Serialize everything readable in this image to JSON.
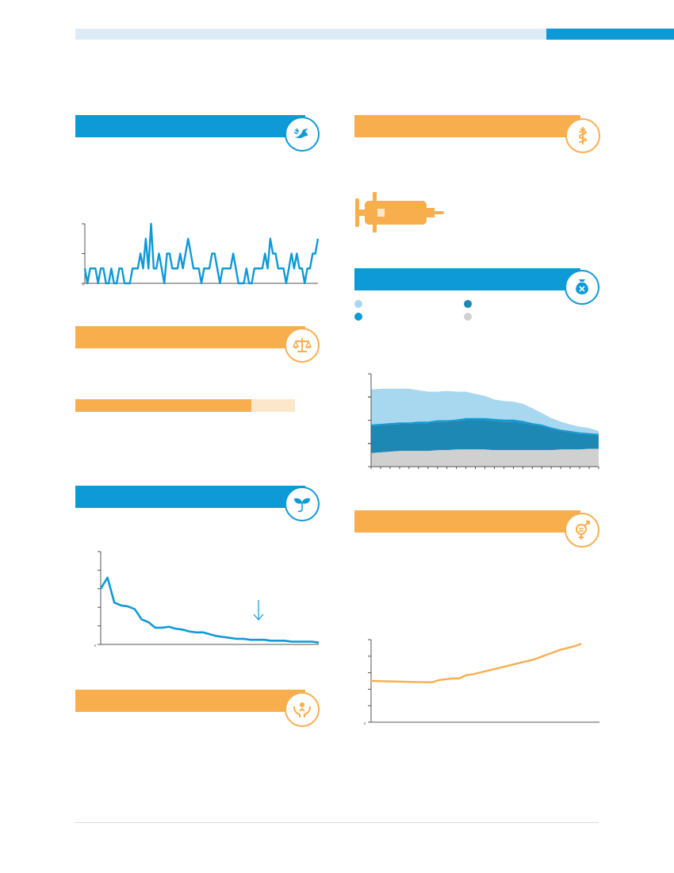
{
  "page": {
    "colors": {
      "blue": "#0e9ad6",
      "orange": "#f9ae4e",
      "dark_blue": "#1e88b4",
      "light_blue": "#a8d8ef",
      "grey": "#d0d0d0",
      "band_light": "#ddebf7"
    }
  },
  "panels": {
    "peace": {
      "icon": "dove-icon"
    },
    "justice": {
      "icon": "scales-icon"
    },
    "environment": {
      "icon": "sprout-icon"
    },
    "care": {
      "icon": "hands-heart-icon"
    },
    "health": {
      "icon": "snake-staff-icon"
    },
    "poverty": {
      "icon": "money-bag-icon"
    },
    "gender": {
      "icon": "gender-equality-icon"
    }
  },
  "syringe": {
    "icon": "syringe-icon"
  },
  "progress": {
    "value": 0.8
  },
  "chart_data": [
    {
      "id": "peace-line",
      "type": "line",
      "series": [
        {
          "values": [
            1,
            0,
            1,
            1,
            1,
            0,
            1,
            1,
            0,
            0,
            1,
            0,
            0,
            1,
            1,
            0,
            0,
            0,
            1,
            1,
            1,
            2,
            1,
            3,
            1,
            4,
            1,
            1,
            2,
            1,
            0,
            2,
            2,
            1,
            1,
            1,
            2,
            1,
            2,
            3,
            2,
            1,
            1,
            1,
            0,
            1,
            1,
            1,
            2,
            2,
            1,
            0,
            1,
            1,
            1,
            1,
            2,
            1,
            0,
            0,
            0,
            1,
            0,
            0,
            1,
            1,
            1,
            1,
            2,
            1,
            3,
            2,
            2,
            1,
            1,
            1,
            0,
            1,
            2,
            1,
            2,
            1,
            1,
            0,
            1,
            1,
            2,
            2,
            3
          ]
        }
      ],
      "ylim": [
        0,
        4
      ],
      "grid": false
    },
    {
      "id": "emissions-line",
      "type": "line",
      "series": [
        {
          "values": [
            60,
            72,
            45,
            42,
            41,
            38,
            27,
            24,
            18,
            18,
            19,
            17,
            16,
            14,
            13,
            13,
            11,
            9,
            8,
            7,
            6,
            6,
            5,
            5,
            5,
            4,
            4,
            4,
            3,
            3,
            3,
            3,
            2
          ]
        }
      ],
      "ylim": [
        0,
        100
      ],
      "grid": false
    },
    {
      "id": "poverty-area",
      "type": "area",
      "series": [
        {
          "values": [
            19,
            20,
            21,
            22,
            22,
            22,
            22,
            23,
            23,
            24,
            24,
            24,
            24,
            23,
            23,
            23,
            23,
            23,
            23,
            23,
            24,
            24,
            24,
            25,
            25
          ]
        },
        {
          "values": [
            38,
            38,
            38,
            38,
            38,
            39,
            39,
            40,
            40,
            40,
            41,
            41,
            41,
            41,
            40,
            40,
            38,
            36,
            34,
            30,
            26,
            24,
            22,
            20,
            19
          ]
        },
        {
          "values": [
            2,
            2,
            2,
            2,
            2,
            2,
            2,
            2,
            2,
            2,
            3,
            3,
            3,
            3,
            3,
            3,
            3,
            2,
            2,
            2,
            2,
            2,
            2,
            2,
            2
          ]
        },
        {
          "values": [
            49,
            49,
            48,
            47,
            47,
            44,
            42,
            40,
            41,
            39,
            37,
            34,
            31,
            27,
            26,
            25,
            24,
            21,
            16,
            13,
            11,
            9,
            8,
            7,
            4
          ]
        }
      ],
      "ylim": [
        0,
        130
      ],
      "grid": false
    },
    {
      "id": "gender-line",
      "type": "line",
      "series": [
        {
          "values": [
            50,
            49.8,
            49.6,
            49.4,
            49.2,
            49,
            48.8,
            48.6,
            48.5,
            48.4,
            51,
            52,
            53,
            53,
            57,
            58,
            60,
            62,
            64,
            66,
            68,
            70,
            72,
            74,
            76,
            79,
            82,
            85,
            88,
            90,
            92,
            95
          ]
        }
      ],
      "ylim": [
        0,
        100
      ],
      "grid": false
    }
  ]
}
